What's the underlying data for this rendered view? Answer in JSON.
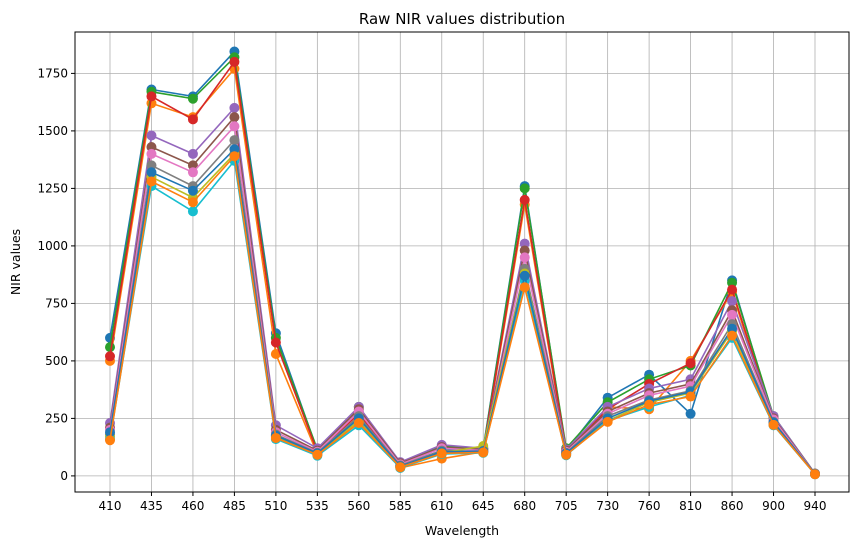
{
  "chart_data": {
    "type": "line",
    "title": "Raw NIR values distribution",
    "xlabel": "Wavelength",
    "ylabel": "NIR values",
    "categories": [
      "410",
      "435",
      "460",
      "485",
      "510",
      "535",
      "560",
      "585",
      "610",
      "645",
      "680",
      "705",
      "730",
      "760",
      "810",
      "860",
      "900",
      "940"
    ],
    "ylim": [
      -70,
      1930
    ],
    "yticks": [
      0,
      250,
      500,
      750,
      1000,
      1250,
      1500,
      1750
    ],
    "grid": true,
    "marker": "circle",
    "colors": [
      "#1f77b4",
      "#ff7f0e",
      "#2ca02c",
      "#d62728",
      "#9467bd",
      "#8c564b",
      "#e377c2",
      "#7f7f7f",
      "#bcbd22",
      "#17becf"
    ],
    "series": [
      {
        "values": [
          600,
          1680,
          1650,
          1845,
          620,
          110,
          280,
          45,
          110,
          120,
          1260,
          110,
          340,
          440,
          270,
          850,
          250,
          10
        ]
      },
      {
        "values": [
          500,
          1620,
          1560,
          1770,
          530,
          95,
          240,
          35,
          75,
          105,
          1180,
          100,
          300,
          290,
          500,
          800,
          230,
          8
        ]
      },
      {
        "values": [
          560,
          1670,
          1640,
          1820,
          600,
          115,
          300,
          55,
          130,
          115,
          1250,
          120,
          320,
          420,
          480,
          840,
          260,
          10
        ]
      },
      {
        "values": [
          520,
          1650,
          1550,
          1800,
          580,
          105,
          270,
          40,
          100,
          110,
          1200,
          110,
          290,
          400,
          490,
          810,
          245,
          9
        ]
      },
      {
        "values": [
          230,
          1480,
          1400,
          1600,
          220,
          120,
          300,
          60,
          135,
          120,
          1010,
          115,
          300,
          380,
          420,
          760,
          260,
          10
        ]
      },
      {
        "values": [
          210,
          1430,
          1350,
          1560,
          200,
          110,
          290,
          55,
          125,
          115,
          980,
          110,
          280,
          360,
          400,
          720,
          250,
          10
        ]
      },
      {
        "values": [
          200,
          1400,
          1320,
          1520,
          190,
          105,
          280,
          50,
          120,
          110,
          950,
          105,
          270,
          350,
          390,
          700,
          245,
          9
        ]
      },
      {
        "values": [
          180,
          1350,
          1260,
          1460,
          180,
          100,
          260,
          45,
          110,
          105,
          900,
          100,
          260,
          330,
          370,
          660,
          235,
          8
        ]
      },
      {
        "values": [
          170,
          1300,
          1210,
          1400,
          170,
          95,
          240,
          40,
          100,
          130,
          880,
          95,
          240,
          320,
          360,
          630,
          225,
          8
        ]
      },
      {
        "values": [
          160,
          1260,
          1150,
          1370,
          160,
          88,
          220,
          35,
          95,
          100,
          850,
          90,
          240,
          300,
          350,
          600,
          220,
          7
        ]
      },
      {
        "values": [
          190,
          1320,
          1240,
          1420,
          175,
          98,
          250,
          42,
          105,
          108,
          870,
          98,
          250,
          325,
          365,
          640,
          232,
          8
        ]
      },
      {
        "values": [
          155,
          1280,
          1190,
          1390,
          165,
          92,
          230,
          38,
          98,
          102,
          820,
          92,
          235,
          310,
          345,
          610,
          222,
          7
        ]
      }
    ]
  }
}
